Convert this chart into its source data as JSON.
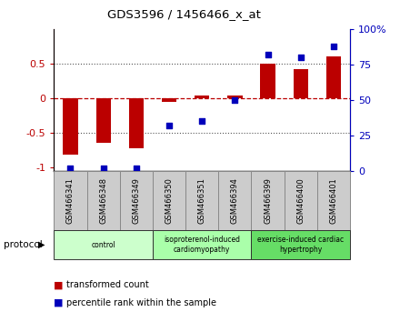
{
  "title": "GDS3596 / 1456466_x_at",
  "samples": [
    "GSM466341",
    "GSM466348",
    "GSM466349",
    "GSM466350",
    "GSM466351",
    "GSM466394",
    "GSM466399",
    "GSM466400",
    "GSM466401"
  ],
  "bar_values": [
    -0.82,
    -0.65,
    -0.72,
    -0.05,
    0.04,
    0.04,
    0.5,
    0.42,
    0.6
  ],
  "dot_values_pct": [
    2,
    2,
    2,
    32,
    35,
    50,
    82,
    80,
    88
  ],
  "bar_color": "#bb0000",
  "dot_color": "#0000bb",
  "ylim": [
    -1.05,
    1.0
  ],
  "y2lim": [
    0,
    100
  ],
  "yticks": [
    -1.0,
    -0.5,
    0.0,
    0.5
  ],
  "ytick_labels": [
    "-1",
    "-0.5",
    "0",
    "0.5"
  ],
  "y2ticks": [
    0,
    25,
    50,
    75,
    100
  ],
  "y2tick_labels": [
    "0",
    "25",
    "50",
    "75",
    "100%"
  ],
  "dotted_hlines": [
    -0.5,
    0.5
  ],
  "groups": [
    {
      "label": "control",
      "start": 0,
      "end": 3,
      "color": "#ccffcc"
    },
    {
      "label": "isoproterenol-induced\ncardiomyopathy",
      "start": 3,
      "end": 6,
      "color": "#aaffaa"
    },
    {
      "label": "exercise-induced cardiac\nhypertrophy",
      "start": 6,
      "end": 9,
      "color": "#66dd66"
    }
  ],
  "protocol_label": "protocol",
  "legend_bar_label": "transformed count",
  "legend_dot_label": "percentile rank within the sample",
  "bar_width": 0.45,
  "sample_box_color": "#cccccc",
  "sample_box_edge": "#888888"
}
